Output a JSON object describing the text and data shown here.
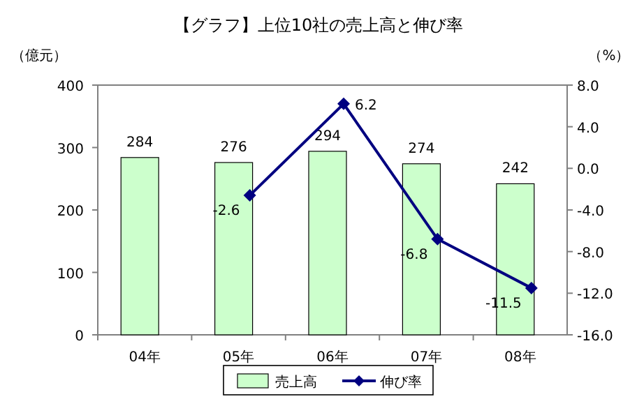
{
  "chart_data": {
    "type": "bar",
    "title": "【グラフ】上位10社の売上高と伸び率",
    "ylabel": "（億元）",
    "y2label": "（%）",
    "categories": [
      "04年",
      "05年",
      "06年",
      "07年",
      "08年"
    ],
    "series": [
      {
        "name": "売上高",
        "color": "#ccffcc",
        "values": [
          284,
          276,
          294,
          274,
          242
        ]
      },
      {
        "name": "伸び率",
        "type": "line",
        "axis": "y2",
        "color": "#000080",
        "marker": "diamond",
        "values": [
          null,
          -2.6,
          6.2,
          -6.8,
          -11.5
        ]
      }
    ],
    "ylim": [
      0,
      400
    ],
    "yticks": [
      0,
      100,
      200,
      300,
      400
    ],
    "y2lim": [
      -16,
      8
    ],
    "y2ticks": [
      {
        "value": -16,
        "label": "-16.0"
      },
      {
        "value": -12,
        "label": "-12.0"
      },
      {
        "value": -8,
        "label": "-8.0"
      },
      {
        "value": -4,
        "label": "-4.0"
      },
      {
        "value": 0,
        "label": "0.0"
      },
      {
        "value": 4,
        "label": "4.0"
      },
      {
        "value": 8,
        "label": "8.0"
      }
    ],
    "data_labels": true,
    "grid": false,
    "legend": "bottom"
  }
}
